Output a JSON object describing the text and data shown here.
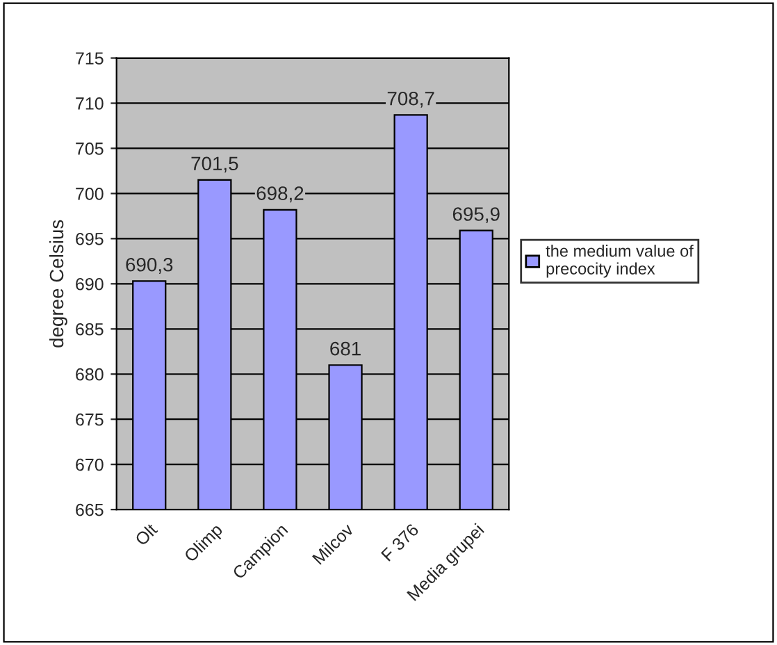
{
  "chart_data": {
    "type": "bar",
    "ylabel": "degree Celsius",
    "categories": [
      "Olt",
      "Olimp",
      "Campion",
      "Milcov",
      "F 376",
      "Media grupei"
    ],
    "series": [
      {
        "name": "the medium value of precocity index",
        "color": "#9999ff",
        "values": [
          690.3,
          701.5,
          698.2,
          681,
          708.7,
          695.9
        ],
        "value_labels": [
          "690,3",
          "701,5",
          "698,2",
          "681",
          "708,7",
          "695,9"
        ]
      }
    ],
    "ylim": [
      665,
      715
    ],
    "yticks": [
      665,
      670,
      675,
      680,
      685,
      690,
      695,
      700,
      705,
      710,
      715
    ],
    "grid": "y",
    "legend": "right"
  }
}
